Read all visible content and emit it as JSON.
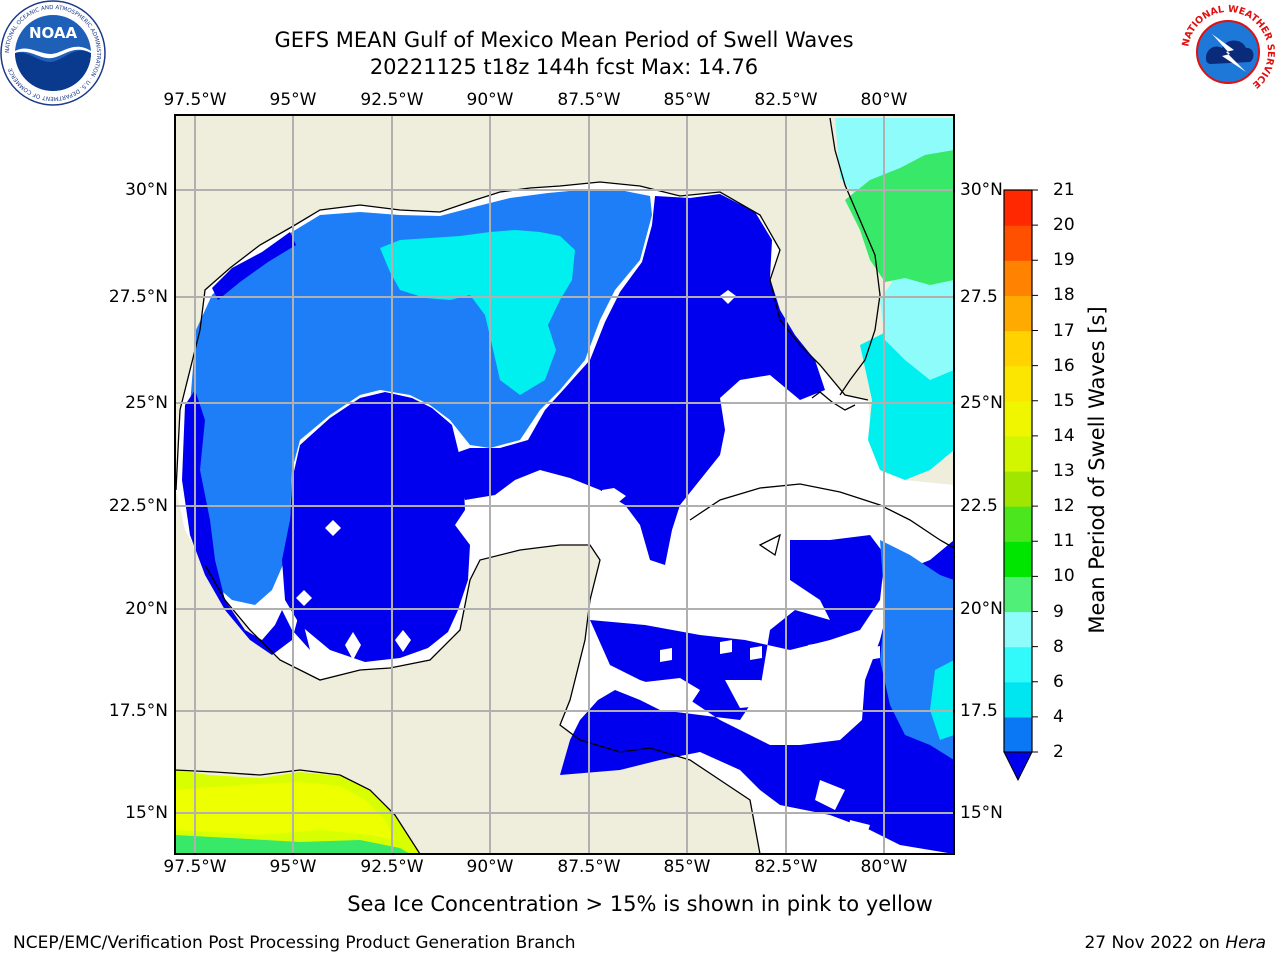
{
  "title": {
    "line1": "GEFS MEAN Gulf of Mexico Mean Period of Swell Waves",
    "line2": "20221125 t18z 144h fcst   Max: 14.76"
  },
  "map": {
    "extent": {
      "lon": [
        -98,
        -79
      ],
      "lat": [
        14,
        32
      ]
    },
    "lon_ticks": [
      "97.5°W",
      "95°W",
      "92.5°W",
      "90°W",
      "87.5°W",
      "85°W",
      "82.5°W",
      "80°W"
    ],
    "lat_ticks_left": [
      "30°N",
      "27.5°N",
      "25°N",
      "22.5°N",
      "20°N",
      "17.5°N",
      "15°N"
    ],
    "lat_ticks_right": [
      "30°N",
      "27.5",
      "25°N",
      "22.5",
      "20°N",
      "17.5",
      "15°N"
    ],
    "land_color": "#efeedc",
    "grid": true,
    "colors": {
      "deep_blue": "#0000ee",
      "blue": "#1e7ef8",
      "cyan": "#00f0f0",
      "light_cyan": "#8ffcfc",
      "green": "#38e868",
      "yellow_green": "#d8ff00"
    }
  },
  "colorbar": {
    "label": "Mean Period of Swell Waves [s]",
    "ticks": [
      "2",
      "4",
      "6",
      "8",
      "9",
      "10",
      "11",
      "12",
      "13",
      "14",
      "15",
      "16",
      "17",
      "18",
      "19",
      "20",
      "21"
    ],
    "colors": [
      "#0a78f5",
      "#00e6f0",
      "#33fafa",
      "#8ffcfc",
      "#50f078",
      "#00e600",
      "#4be61e",
      "#a0e600",
      "#d2f500",
      "#f0f500",
      "#fae600",
      "#ffd200",
      "#ffaa00",
      "#ff8200",
      "#ff5000",
      "#ff2800",
      "#ff0000"
    ],
    "extend_color": "#0000ee"
  },
  "subtitle": "Sea Ice Concentration > 15% is shown in pink to yellow",
  "footer": {
    "left": "NCEP/EMC/Verification Post Processing Product Generation Branch",
    "right_date": "27 Nov 2022 on ",
    "right_machine": "Hera"
  },
  "logos": {
    "noaa": "NOAA",
    "noaa_ring": "NATIONAL OCEANIC AND ATMOSPHERIC ADMINISTRATION · U.S. DEPARTMENT OF COMMERCE",
    "nws_ring": "NATIONAL WEATHER SERVICE"
  }
}
